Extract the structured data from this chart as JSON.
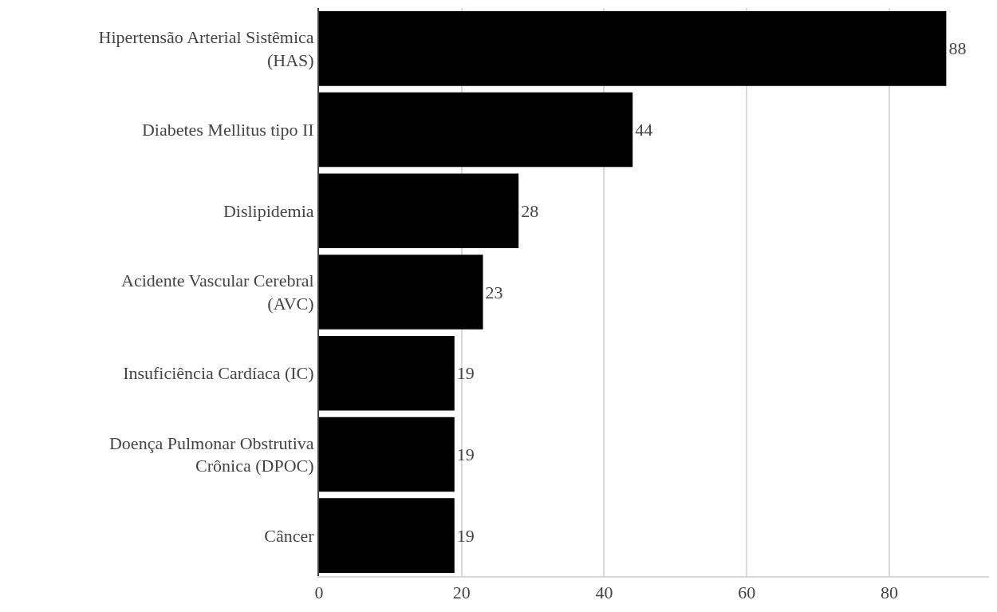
{
  "chart_data": {
    "type": "bar",
    "orientation": "horizontal",
    "categories": [
      "Hipertensão Arterial Sistêmica (HAS)",
      "Diabetes Mellitus tipo II",
      "Dislipidemia",
      "Acidente Vascular Cerebral (AVC)",
      "Insuficiência Cardíaca (IC)",
      "Doença Pulmonar Obstrutiva Crônica (DPOC)",
      "Câncer"
    ],
    "values": [
      88,
      44,
      28,
      23,
      19,
      19,
      19
    ],
    "color": "#000000",
    "xlim": [
      0,
      94
    ],
    "xticks": [
      0,
      20,
      40,
      60,
      80
    ],
    "grid": "x",
    "data_labels": true,
    "legend": false
  }
}
